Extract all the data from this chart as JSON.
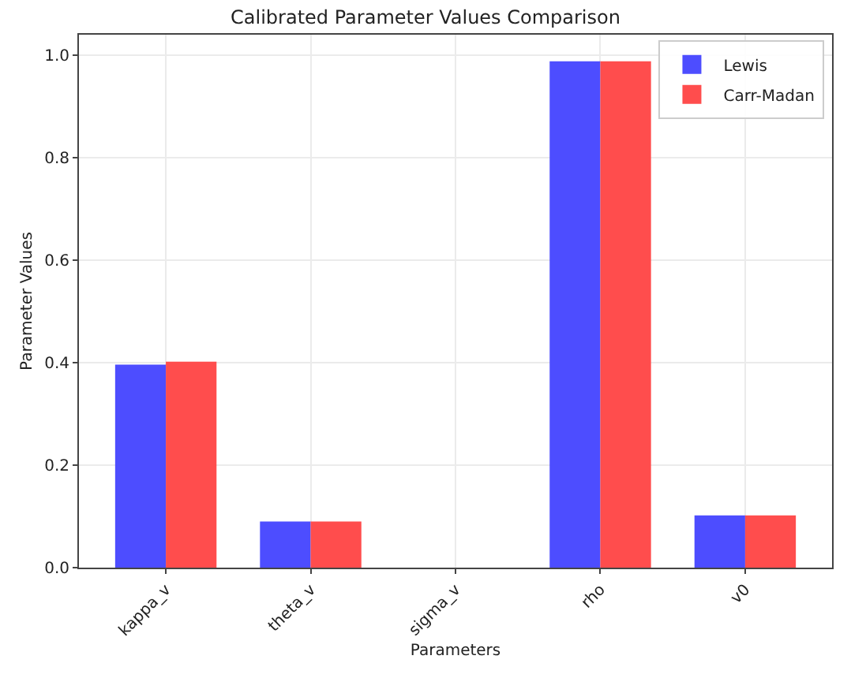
{
  "chart_data": {
    "type": "bar",
    "title": "Calibrated Parameter Values Comparison",
    "xlabel": "Parameters",
    "ylabel": "Parameter Values",
    "categories": [
      "kappa_v",
      "theta_v",
      "sigma_v",
      "rho",
      "v0"
    ],
    "series": [
      {
        "name": "Lewis",
        "color": "#4d4dff",
        "values": [
          0.396,
          0.09,
          0,
          0.988,
          0.102
        ]
      },
      {
        "name": "Carr-Madan",
        "color": "#ff4d4d",
        "values": [
          0.402,
          0.09,
          0,
          0.988,
          0.102
        ]
      }
    ],
    "ylim": [
      0,
      1.04
    ],
    "yticks": [
      {
        "value": 0,
        "label": "0.0"
      },
      {
        "value": 0.2,
        "label": "0.2"
      },
      {
        "value": 0.4,
        "label": "0.4"
      },
      {
        "value": 0.6,
        "label": "0.6"
      },
      {
        "value": 0.8,
        "label": "0.8"
      },
      {
        "value": 1,
        "label": "1.0"
      }
    ],
    "grid": true,
    "legend": "top right"
  }
}
